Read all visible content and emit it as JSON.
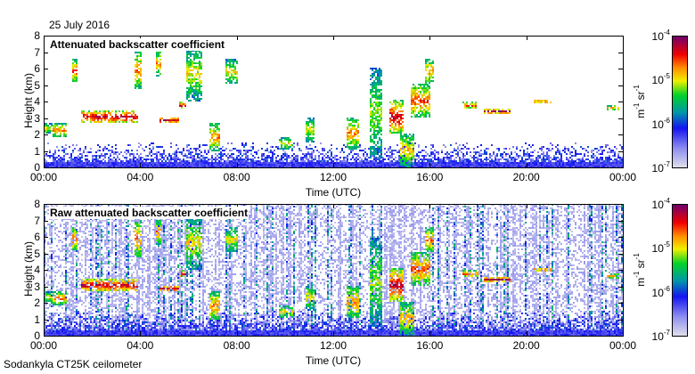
{
  "date": "25 July 2016",
  "footer": "Sodankyla CT25K ceilometer",
  "chart_data": [
    {
      "type": "heatmap",
      "title": "Attenuated backscatter coefficient",
      "xlabel": "Time (UTC)",
      "ylabel": "Height (km)",
      "xlim": [
        0,
        24
      ],
      "ylim": [
        0,
        8
      ],
      "xticks": [
        "00:00",
        "04:00",
        "08:00",
        "12:00",
        "16:00",
        "20:00",
        "00:00"
      ],
      "yticks": [
        "0",
        "1",
        "2",
        "3",
        "4",
        "5",
        "6",
        "7",
        "8"
      ],
      "colorbar": {
        "label_base": "m",
        "label_exp1": "-1",
        "label_mid": " sr",
        "label_exp2": "-1",
        "scale": "log",
        "range": [
          1e-07,
          0.0001
        ],
        "ticks": [
          {
            "base": "10",
            "exp": "-4"
          },
          {
            "base": "10",
            "exp": "-5"
          },
          {
            "base": "10",
            "exp": "-6"
          },
          {
            "base": "10",
            "exp": "-7"
          }
        ]
      },
      "cloud_layers_hours_km": [
        [
          0,
          0.3,
          2.0,
          2.6,
          0.6
        ],
        [
          0.3,
          0.9,
          1.8,
          2.6,
          0.7
        ],
        [
          1.15,
          1.35,
          5.1,
          6.5,
          0.75
        ],
        [
          1.5,
          3.9,
          2.6,
          3.4,
          0.85
        ],
        [
          3.7,
          4.0,
          4.7,
          7.0,
          0.7
        ],
        [
          4.6,
          4.85,
          5.5,
          7.0,
          0.7
        ],
        [
          4.8,
          5.6,
          2.6,
          3.0,
          0.85
        ],
        [
          5.6,
          5.9,
          3.5,
          3.9,
          0.85
        ],
        [
          5.9,
          6.5,
          4.0,
          7.2,
          0.6
        ],
        [
          6.8,
          7.3,
          0.9,
          2.6,
          0.7
        ],
        [
          7.5,
          8.0,
          5.0,
          6.5,
          0.6
        ],
        [
          9.7,
          10.3,
          1.0,
          1.8,
          0.6
        ],
        [
          10.8,
          11.2,
          1.5,
          3.0,
          0.6
        ],
        [
          12.5,
          13.0,
          1.0,
          3.0,
          0.7
        ],
        [
          13.5,
          14.0,
          0.5,
          6.0,
          0.55
        ],
        [
          14.3,
          14.9,
          2.0,
          4.0,
          0.85
        ],
        [
          14.7,
          15.3,
          0.0,
          2.0,
          0.65
        ],
        [
          15.2,
          16.0,
          3.0,
          5.0,
          0.75
        ],
        [
          15.8,
          16.1,
          5.0,
          6.5,
          0.7
        ],
        [
          17.3,
          18.0,
          3.5,
          3.9,
          0.75
        ],
        [
          18.2,
          19.3,
          3.2,
          3.5,
          0.9
        ],
        [
          20.3,
          21.0,
          3.8,
          4.1,
          0.75
        ],
        [
          23.3,
          23.8,
          3.4,
          3.7,
          0.7
        ]
      ]
    },
    {
      "type": "heatmap",
      "title": "Raw attenuated backscatter coefficient",
      "xlabel": "Time (UTC)",
      "ylabel": "Height (km)",
      "xlim": [
        0,
        24
      ],
      "ylim": [
        0,
        8
      ],
      "xticks": [
        "00:00",
        "04:00",
        "08:00",
        "12:00",
        "16:00",
        "20:00",
        "00:00"
      ],
      "yticks": [
        "0",
        "1",
        "2",
        "3",
        "4",
        "5",
        "6",
        "7",
        "8"
      ],
      "colorbar": {
        "label_base": "m",
        "label_exp1": "-1",
        "label_mid": " sr",
        "label_exp2": "-1",
        "scale": "log",
        "range": [
          1e-07,
          0.0001
        ],
        "ticks": [
          {
            "base": "10",
            "exp": "-4"
          },
          {
            "base": "10",
            "exp": "-5"
          },
          {
            "base": "10",
            "exp": "-6"
          },
          {
            "base": "10",
            "exp": "-7"
          }
        ]
      }
    }
  ]
}
